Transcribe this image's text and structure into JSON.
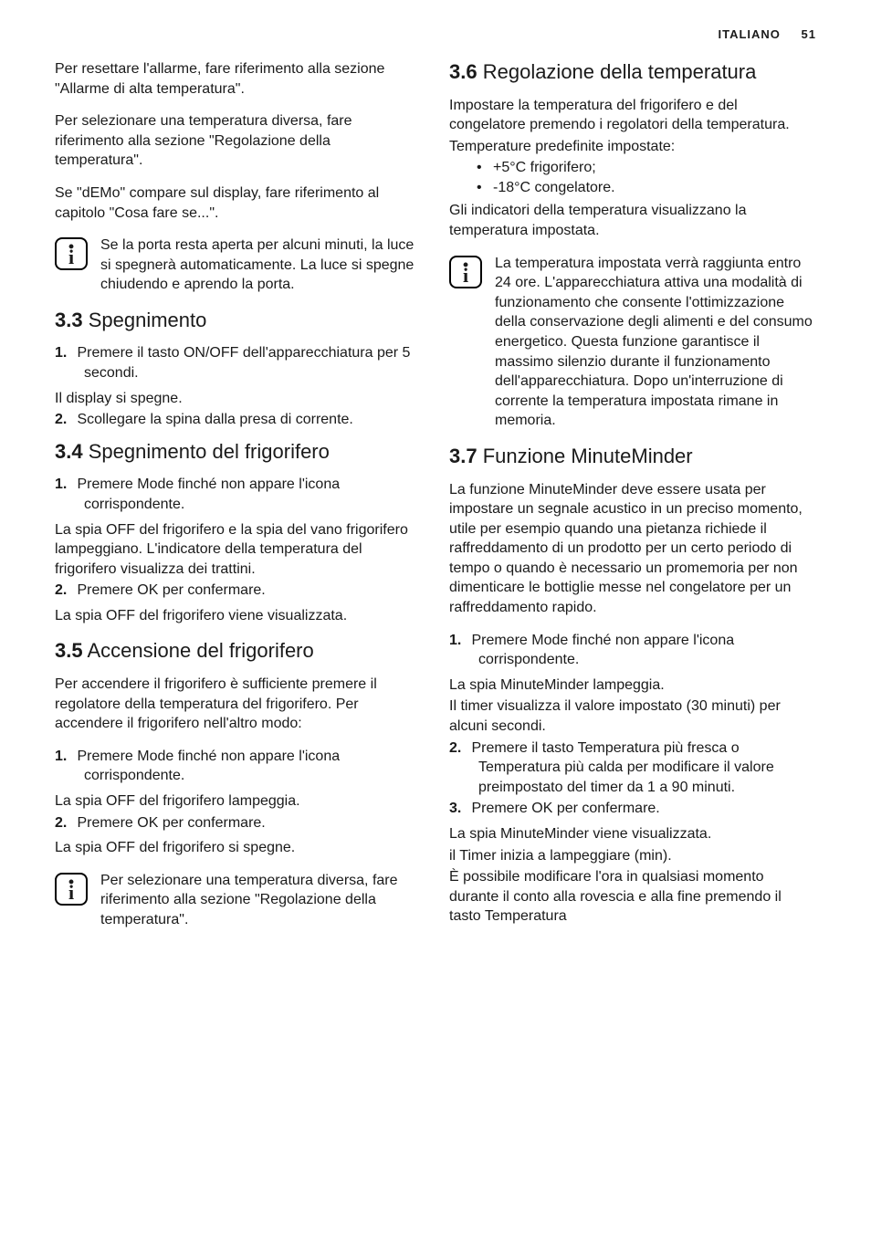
{
  "header": {
    "language": "ITALIANO",
    "page_number": "51"
  },
  "left": {
    "intro_paras": [
      "Per resettare l'allarme, fare riferimento alla sezione \"Allarme di alta temperatura\".",
      "Per selezionare una temperatura diversa, fare riferimento alla sezione \"Regolazione della temperatura\".",
      "Se \"dEMo\" compare sul display, fare riferimento al capitolo \"Cosa fare se...\"."
    ],
    "info1": "Se la porta resta aperta per alcuni minuti, la luce si spegnerà automaticamente. La luce si spegne chiudendo e aprendo la porta.",
    "s33": {
      "num": "3.3",
      "title": "Spegnimento",
      "step1": "Premere il tasto ON/OFF dell'apparecchiatura per 5 secondi.",
      "after1": "Il display si spegne.",
      "step2": "Scollegare la spina dalla presa di corrente."
    },
    "s34": {
      "num": "3.4",
      "title": "Spegnimento del frigorifero",
      "step1": "Premere Mode finché non appare l'icona corrispondente.",
      "after1": "La spia OFF del frigorifero e la spia del vano frigorifero lampeggiano. L'indicatore della temperatura del frigorifero visualizza dei trattini.",
      "step2": "Premere OK per confermare.",
      "after2": "La spia OFF del frigorifero viene visualizzata."
    },
    "s35": {
      "num": "3.5",
      "title": "Accensione del frigorifero",
      "intro": "Per accendere il frigorifero è sufficiente premere il regolatore della temperatura del frigorifero. Per accendere il frigorifero nell'altro modo:",
      "step1": "Premere Mode finché non appare l'icona corrispondente.",
      "after1": "La spia OFF del frigorifero lampeggia.",
      "step2": "Premere OK per confermare.",
      "after2": "La spia OFF del frigorifero si spegne.",
      "info": "Per selezionare una temperatura diversa, fare riferimento alla sezione \"Regolazione della temperatura\"."
    }
  },
  "right": {
    "s36": {
      "num": "3.6",
      "title": "Regolazione della temperatura",
      "p1": "Impostare la temperatura del frigorifero e del congelatore premendo i regolatori della temperatura.",
      "p2": "Temperature predefinite impostate:",
      "b1": "+5°C frigorifero;",
      "b2": "-18°C congelatore.",
      "p3": "Gli indicatori della temperatura visualizzano la temperatura impostata.",
      "info": "La temperatura impostata verrà raggiunta entro 24 ore. L'apparecchiatura attiva una modalità di funzionamento che consente l'ottimizzazione della conservazione degli alimenti e del consumo energetico. Questa funzione garantisce il massimo silenzio durante il funzionamento dell'apparecchiatura. Dopo un'interruzione di corrente la temperatura impostata rimane in memoria."
    },
    "s37": {
      "num": "3.7",
      "title": "Funzione MinuteMinder",
      "intro": "La funzione MinuteMinder deve essere usata per impostare un segnale acustico in un preciso momento, utile per esempio quando una pietanza richiede il raffreddamento di un prodotto per un certo periodo di tempo o quando è necessario un promemoria per non dimenticare le bottiglie messe nel congelatore per un raffreddamento rapido.",
      "step1": "Premere Mode finché non appare l'icona corrispondente.",
      "after1a": "La spia MinuteMinder lampeggia.",
      "after1b": "Il timer visualizza il valore impostato (30 minuti) per alcuni secondi.",
      "step2": "Premere il tasto Temperatura più fresca o Temperatura più calda per modificare il valore preimpostato del timer da 1 a 90 minuti.",
      "step3": "Premere OK per confermare.",
      "after3a": "La spia MinuteMinder viene visualizzata.",
      "after3b": "il Timer inizia a lampeggiare (min).",
      "after3c": "È possibile modificare l'ora in qualsiasi momento durante il conto alla rovescia e alla fine premendo il tasto Temperatura"
    }
  }
}
